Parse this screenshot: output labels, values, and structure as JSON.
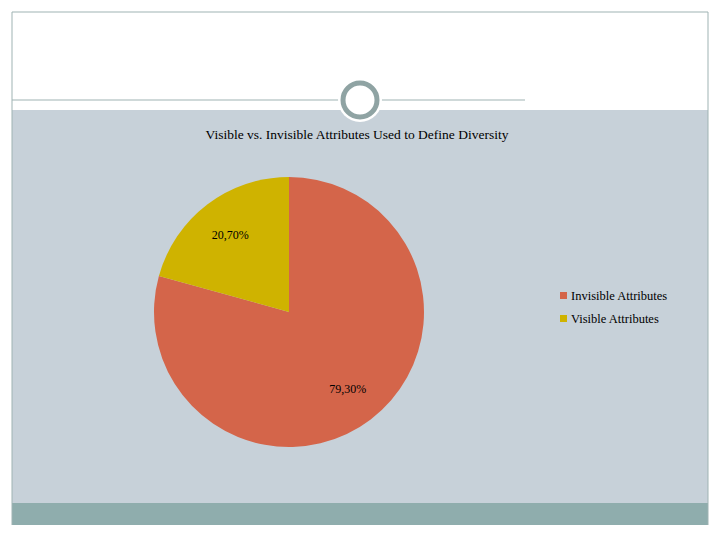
{
  "chart_data": {
    "type": "pie",
    "title": "Visible vs. Invisible Attributes Used to Define Diversity",
    "categories": [
      "Invisible Attributes",
      "Visible Attributes"
    ],
    "values": [
      79.3,
      20.7
    ],
    "value_labels": [
      "79,30%",
      "20,70%"
    ],
    "colors": [
      "#d4654a",
      "#cfb300"
    ],
    "data_labels": true,
    "legend": "right"
  }
}
